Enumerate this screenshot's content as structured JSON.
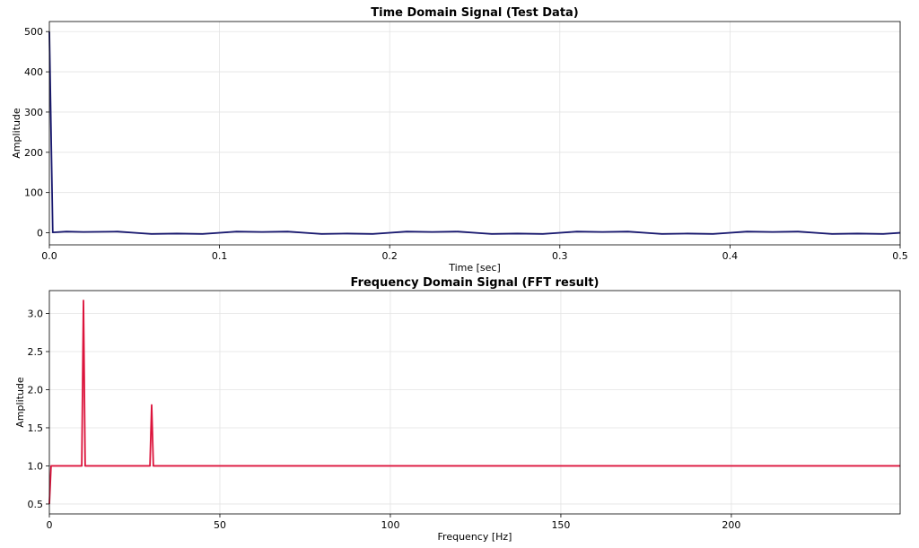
{
  "colors": {
    "time_line": "#191970",
    "freq_line": "#dc143c"
  },
  "chart_data": [
    {
      "type": "line",
      "title": "Time Domain Signal (Test Data)",
      "xlabel": "Time [sec]",
      "ylabel": "Amplitude",
      "xlim": [
        0,
        0.5
      ],
      "ylim": [
        -30,
        525
      ],
      "xticks": [
        0.0,
        0.1,
        0.2,
        0.3,
        0.4,
        0.5
      ],
      "xtick_labels": [
        "0.0",
        "0.1",
        "0.2",
        "0.3",
        "0.4",
        "0.5"
      ],
      "yticks": [
        0,
        100,
        200,
        300,
        400,
        500
      ],
      "ytick_labels": [
        "0",
        "100",
        "200",
        "300",
        "400",
        "500"
      ],
      "grid": true,
      "series": [
        {
          "color": "#191970",
          "x": [
            0,
            0.002,
            0.01,
            0.02,
            0.04,
            0.06,
            0.075,
            0.09,
            0.11,
            0.125,
            0.14,
            0.16,
            0.175,
            0.19,
            0.21,
            0.225,
            0.24,
            0.26,
            0.275,
            0.29,
            0.31,
            0.325,
            0.34,
            0.36,
            0.375,
            0.39,
            0.41,
            0.425,
            0.44,
            0.46,
            0.475,
            0.49,
            0.5
          ],
          "y": [
            500,
            1,
            3,
            2,
            3,
            -3,
            -2,
            -3,
            3,
            2,
            3,
            -3,
            -2,
            -3,
            3,
            2,
            3,
            -3,
            -2,
            -3,
            3,
            2,
            3,
            -3,
            -2,
            -3,
            3,
            2,
            3,
            -3,
            -2,
            -3,
            0
          ]
        }
      ]
    },
    {
      "type": "line",
      "title": "Frequency Domain Signal (FFT result)",
      "xlabel": "Frequency [Hz]",
      "ylabel": "Amplitude",
      "xlim": [
        0,
        249.5
      ],
      "ylim": [
        0.37,
        3.3
      ],
      "xticks": [
        0,
        50,
        100,
        150,
        200
      ],
      "xtick_labels": [
        "0",
        "50",
        "100",
        "150",
        "200"
      ],
      "yticks": [
        0.5,
        1.0,
        1.5,
        2.0,
        2.5,
        3.0
      ],
      "ytick_labels": [
        "0.5",
        "1.0",
        "1.5",
        "2.0",
        "2.5",
        "3.0"
      ],
      "grid": true,
      "series": [
        {
          "color": "#dc143c",
          "x": [
            0,
            0.5,
            1,
            9.5,
            10,
            10.5,
            29.5,
            30,
            30.5,
            249.5
          ],
          "y": [
            0.5,
            1.0,
            1.0,
            1.0,
            3.17,
            1.0,
            1.0,
            1.8,
            1.0,
            1.0
          ]
        }
      ]
    }
  ]
}
